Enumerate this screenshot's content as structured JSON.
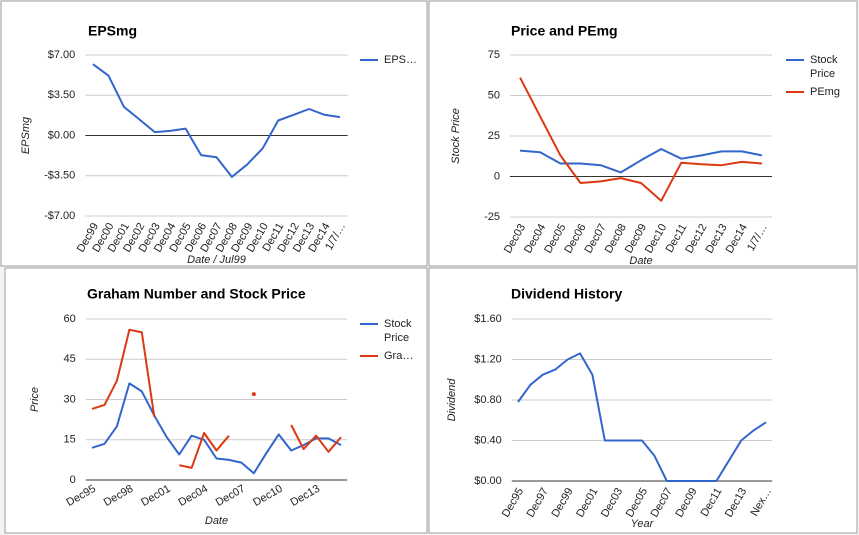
{
  "chart_data": [
    {
      "type": "line",
      "title": "EPSmg",
      "ylabel": "EPSmg",
      "xlabel": "Date / Jul99",
      "categories": [
        "Dec99",
        "Dec00",
        "Dec01",
        "Dec02",
        "Dec03",
        "Dec04",
        "Dec05",
        "Dec06",
        "Dec07",
        "Dec08",
        "Dec09",
        "Dec10",
        "Dec11",
        "Dec12",
        "Dec13",
        "Dec14",
        "1/7/…"
      ],
      "series": [
        {
          "name": "EPS…",
          "color": "#3366cc",
          "values": [
            6.2,
            5.2,
            2.5,
            1.4,
            0.3,
            0.4,
            0.6,
            -1.7,
            -1.9,
            -3.6,
            -2.5,
            -1.1,
            1.3,
            1.8,
            2.3,
            1.8,
            1.6
          ]
        }
      ],
      "ylim": [
        -7,
        7
      ],
      "yticks": [
        {
          "value": 7,
          "label": "$7.00"
        },
        {
          "value": 3.5,
          "label": "$3.50"
        },
        {
          "value": 0,
          "label": "$0.00"
        },
        {
          "value": -3.5,
          "label": "-$3.50"
        },
        {
          "value": -7,
          "label": "-$7.00"
        }
      ],
      "grid": true,
      "legend": "right"
    },
    {
      "type": "line",
      "title": "Price and PEmg",
      "ylabel": "Stock Price",
      "xlabel": "Date",
      "categories": [
        "Dec03",
        "Dec04",
        "Dec05",
        "Dec06",
        "Dec07",
        "Dec08",
        "Dec09",
        "Dec10",
        "Dec11",
        "Dec12",
        "Dec13",
        "Dec14",
        "1/7/…"
      ],
      "series": [
        {
          "name": "Stock Price",
          "color": "#3366cc",
          "values": [
            16,
            15,
            8,
            8,
            7,
            2.5,
            10,
            17,
            11,
            13,
            15.5,
            15.5,
            13
          ]
        },
        {
          "name": "PEmg",
          "color": "#dc3912",
          "values": [
            61,
            37,
            13,
            -4,
            -3,
            -1,
            -4,
            -15,
            8.5,
            7.5,
            7,
            9,
            8
          ]
        }
      ],
      "ylim": [
        -25,
        75
      ],
      "yticks": [
        75,
        50,
        25,
        0,
        -25
      ],
      "grid": true,
      "legend": "right"
    },
    {
      "type": "line",
      "title": "Graham Number and Stock Price",
      "ylabel": "Price",
      "xlabel": "Date",
      "categories": [
        "Dec95",
        null,
        null,
        "Dec98",
        null,
        null,
        "Dec01",
        null,
        null,
        "Dec04",
        null,
        null,
        "Dec07",
        null,
        null,
        "Dec10",
        null,
        null,
        "Dec13",
        null,
        null
      ],
      "series": [
        {
          "name": "Stock Price",
          "color": "#3366cc",
          "values": [
            12,
            13.5,
            20,
            36,
            33,
            24,
            16,
            9.5,
            16.5,
            15,
            8,
            7.5,
            6.5,
            2.5,
            10,
            17,
            11,
            13,
            15.5,
            15.5,
            13
          ]
        },
        {
          "name": "Gra…",
          "color": "#dc3912",
          "values": [
            26.5,
            28,
            37,
            56,
            55,
            23.5,
            null,
            5.5,
            4.5,
            17.5,
            11,
            16.5,
            null,
            32,
            null,
            null,
            20.5,
            11.5,
            16.5,
            10.5,
            16
          ]
        }
      ],
      "ylim": [
        0,
        60
      ],
      "yticks": [
        60,
        45,
        30,
        15,
        0
      ],
      "grid": true,
      "legend": "right"
    },
    {
      "type": "line",
      "title": "Dividend History",
      "ylabel": "Dividend",
      "xlabel": "Year",
      "categories": [
        "Dec95",
        null,
        "Dec97",
        null,
        "Dec99",
        null,
        "Dec01",
        null,
        "Dec03",
        null,
        "Dec05",
        null,
        "Dec07",
        null,
        "Dec09",
        null,
        "Dec11",
        null,
        "Dec13",
        null,
        "Nex…"
      ],
      "series": [
        {
          "color": "#3366cc",
          "values": [
            0.78,
            0.95,
            1.05,
            1.1,
            1.2,
            1.26,
            1.05,
            0.4,
            0.4,
            0.4,
            0.4,
            0.25,
            0,
            0,
            0,
            0,
            0,
            0.2,
            0.4,
            0.5,
            0.58
          ]
        }
      ],
      "ylim": [
        0,
        1.6
      ],
      "yticks": [
        {
          "value": 1.6,
          "label": "$1.60"
        },
        {
          "value": 1.2,
          "label": "$1.20"
        },
        {
          "value": 0.8,
          "label": "$0.80"
        },
        {
          "value": 0.4,
          "label": "$0.40"
        },
        {
          "value": 0,
          "label": "$0.00"
        }
      ],
      "grid": true
    }
  ]
}
